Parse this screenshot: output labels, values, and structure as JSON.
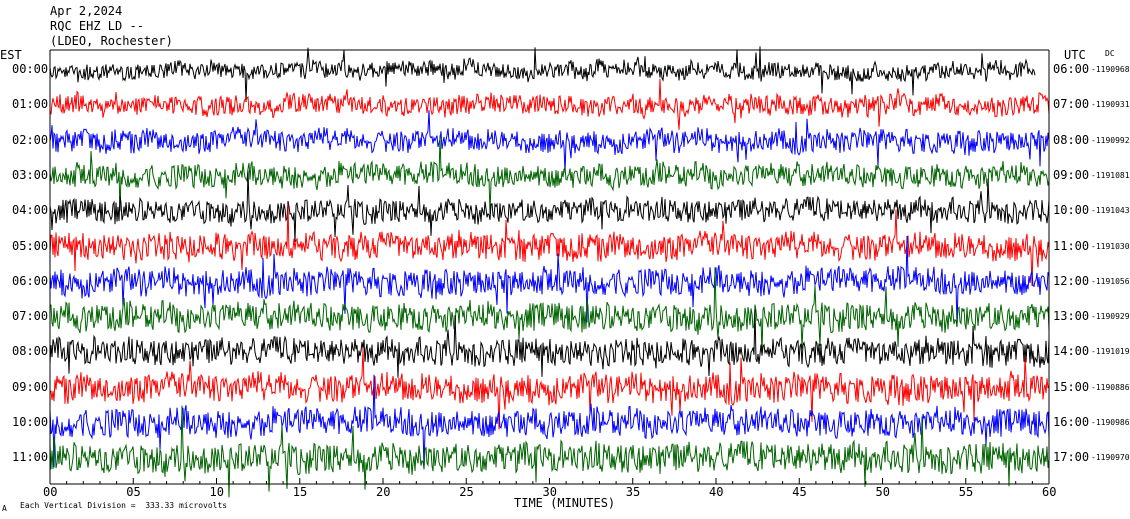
{
  "header": {
    "date": "Apr 2,2024",
    "station": "RQC EHZ LD --",
    "network": "(LDEO, Rochester)"
  },
  "left_zone_label": "EST",
  "right_zone_label": "UTC",
  "dc_label": "DC",
  "footer": {
    "scale_note": "Each Vertical Division =  333.33 microvolts",
    "corner_mark": "A"
  },
  "colors": {
    "trace_cycle": [
      "#000000",
      "#ff0000",
      "#0000ff",
      "#006400"
    ],
    "frame": "#000000"
  },
  "chart_data": {
    "type": "line",
    "title": "Apr 2,2024",
    "xlabel": "TIME (MINUTES)",
    "ylabel": "",
    "xlim": [
      0,
      60
    ],
    "x_ticks": [
      "00",
      "05",
      "10",
      "15",
      "20",
      "25",
      "30",
      "35",
      "40",
      "45",
      "50",
      "55",
      "60"
    ],
    "grid": false,
    "series": [
      {
        "est": "00:00",
        "utc": "06:00",
        "dc": "-1190968",
        "amp": 10,
        "color_index": 0
      },
      {
        "est": "01:00",
        "utc": "07:00",
        "dc": "-1190931",
        "amp": 12,
        "color_index": 1
      },
      {
        "est": "02:00",
        "utc": "08:00",
        "dc": "-1190992",
        "amp": 13,
        "color_index": 2
      },
      {
        "est": "03:00",
        "utc": "09:00",
        "dc": "-1191081",
        "amp": 14,
        "color_index": 3
      },
      {
        "est": "04:00",
        "utc": "10:00",
        "dc": "-1191043",
        "amp": 14,
        "color_index": 0
      },
      {
        "est": "05:00",
        "utc": "11:00",
        "dc": "-1191030",
        "amp": 16,
        "color_index": 1
      },
      {
        "est": "06:00",
        "utc": "12:00",
        "dc": "-1191056",
        "amp": 16,
        "color_index": 2
      },
      {
        "est": "07:00",
        "utc": "13:00",
        "dc": "-1190929",
        "amp": 17,
        "color_index": 3
      },
      {
        "est": "08:00",
        "utc": "14:00",
        "dc": "-1191019",
        "amp": 16,
        "color_index": 0
      },
      {
        "est": "09:00",
        "utc": "15:00",
        "dc": "-1190886",
        "amp": 17,
        "color_index": 1
      },
      {
        "est": "10:00",
        "utc": "16:00",
        "dc": "-1190986",
        "amp": 17,
        "color_index": 2
      },
      {
        "est": "11:00",
        "utc": "17:00",
        "dc": "-1190970",
        "amp": 18,
        "color_index": 3
      }
    ]
  }
}
